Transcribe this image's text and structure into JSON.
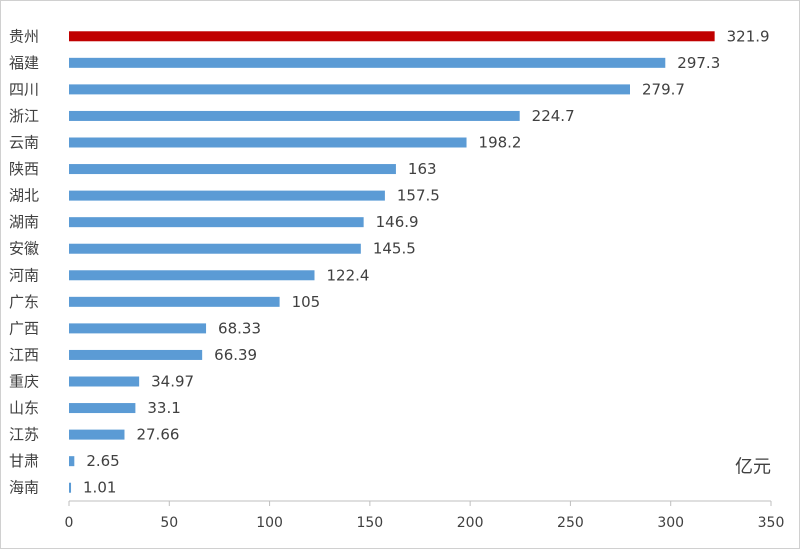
{
  "chart_data": {
    "type": "bar",
    "orientation": "horizontal",
    "categories": [
      "贵州",
      "福建",
      "四川",
      "浙江",
      "云南",
      "陕西",
      "湖北",
      "湖南",
      "安徽",
      "河南",
      "广东",
      "广西",
      "江西",
      "重庆",
      "山东",
      "江苏",
      "甘肃",
      "海南"
    ],
    "values": [
      321.9,
      297.3,
      279.7,
      224.7,
      198.2,
      163,
      157.5,
      146.9,
      145.5,
      122.4,
      105,
      68.33,
      66.39,
      34.97,
      33.1,
      27.66,
      2.65,
      1.01
    ],
    "value_labels": [
      "321.9",
      "297.3",
      "279.7",
      "224.7",
      "198.2",
      "163",
      "157.5",
      "146.9",
      "145.5",
      "122.4",
      "105",
      "68.33",
      "66.39",
      "34.97",
      "33.1",
      "27.66",
      "2.65",
      "1.01"
    ],
    "unit": "亿元",
    "xlim": [
      0,
      350
    ],
    "x_ticks": [
      0,
      50,
      100,
      150,
      200,
      250,
      300,
      350
    ],
    "grid": false,
    "legend": "none",
    "highlight_index": 0,
    "colors": {
      "bar": "#5b9bd5",
      "highlight": "#c00000",
      "axis": "#bfbfbf",
      "text": "#404040"
    }
  }
}
